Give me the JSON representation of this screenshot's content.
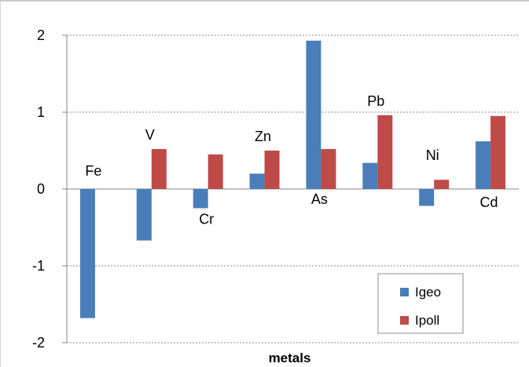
{
  "chart_data": {
    "type": "bar",
    "categories": [
      "Fe",
      "V",
      "Cr",
      "Zn",
      "As",
      "Pb",
      "Ni",
      "Cd"
    ],
    "series": [
      {
        "name": "Igeo",
        "color": "#4a7ebb",
        "values": [
          -1.68,
          -0.67,
          -0.25,
          0.2,
          1.93,
          0.34,
          -0.22,
          0.62
        ]
      },
      {
        "name": "Ipoll",
        "color": "#be4b48",
        "values": [
          null,
          0.52,
          0.45,
          0.5,
          0.52,
          0.96,
          0.12,
          0.95
        ]
      }
    ],
    "xlabel": "metals",
    "ylabel": "",
    "ylim": [
      -2,
      2
    ],
    "yticks": [
      -2,
      -1,
      0,
      1,
      2
    ],
    "grid": true,
    "legend_position": "bottom-right"
  }
}
